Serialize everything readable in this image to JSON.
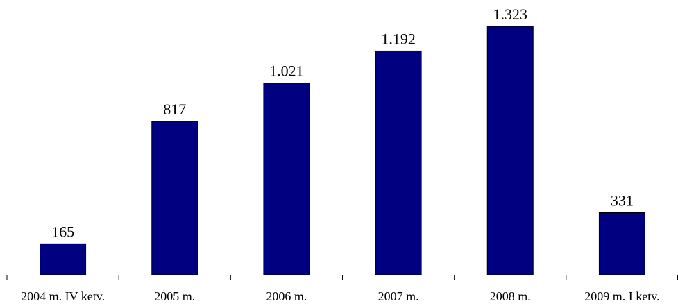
{
  "chart_data": {
    "type": "bar",
    "title": "",
    "xlabel": "",
    "ylabel": "",
    "categories": [
      "2004 m. IV ketv.",
      "2005 m.",
      "2006 m.",
      "2007 m.",
      "2008 m.",
      "2009 m. I ketv."
    ],
    "values": [
      165,
      817,
      1021,
      1192,
      1323,
      331
    ],
    "value_labels": [
      "165",
      "817",
      "1.021",
      "1.192",
      "1.323",
      "331"
    ],
    "ylim": [
      0,
      1350
    ],
    "grid": false,
    "legend": "none",
    "bar_color": "#000080"
  }
}
